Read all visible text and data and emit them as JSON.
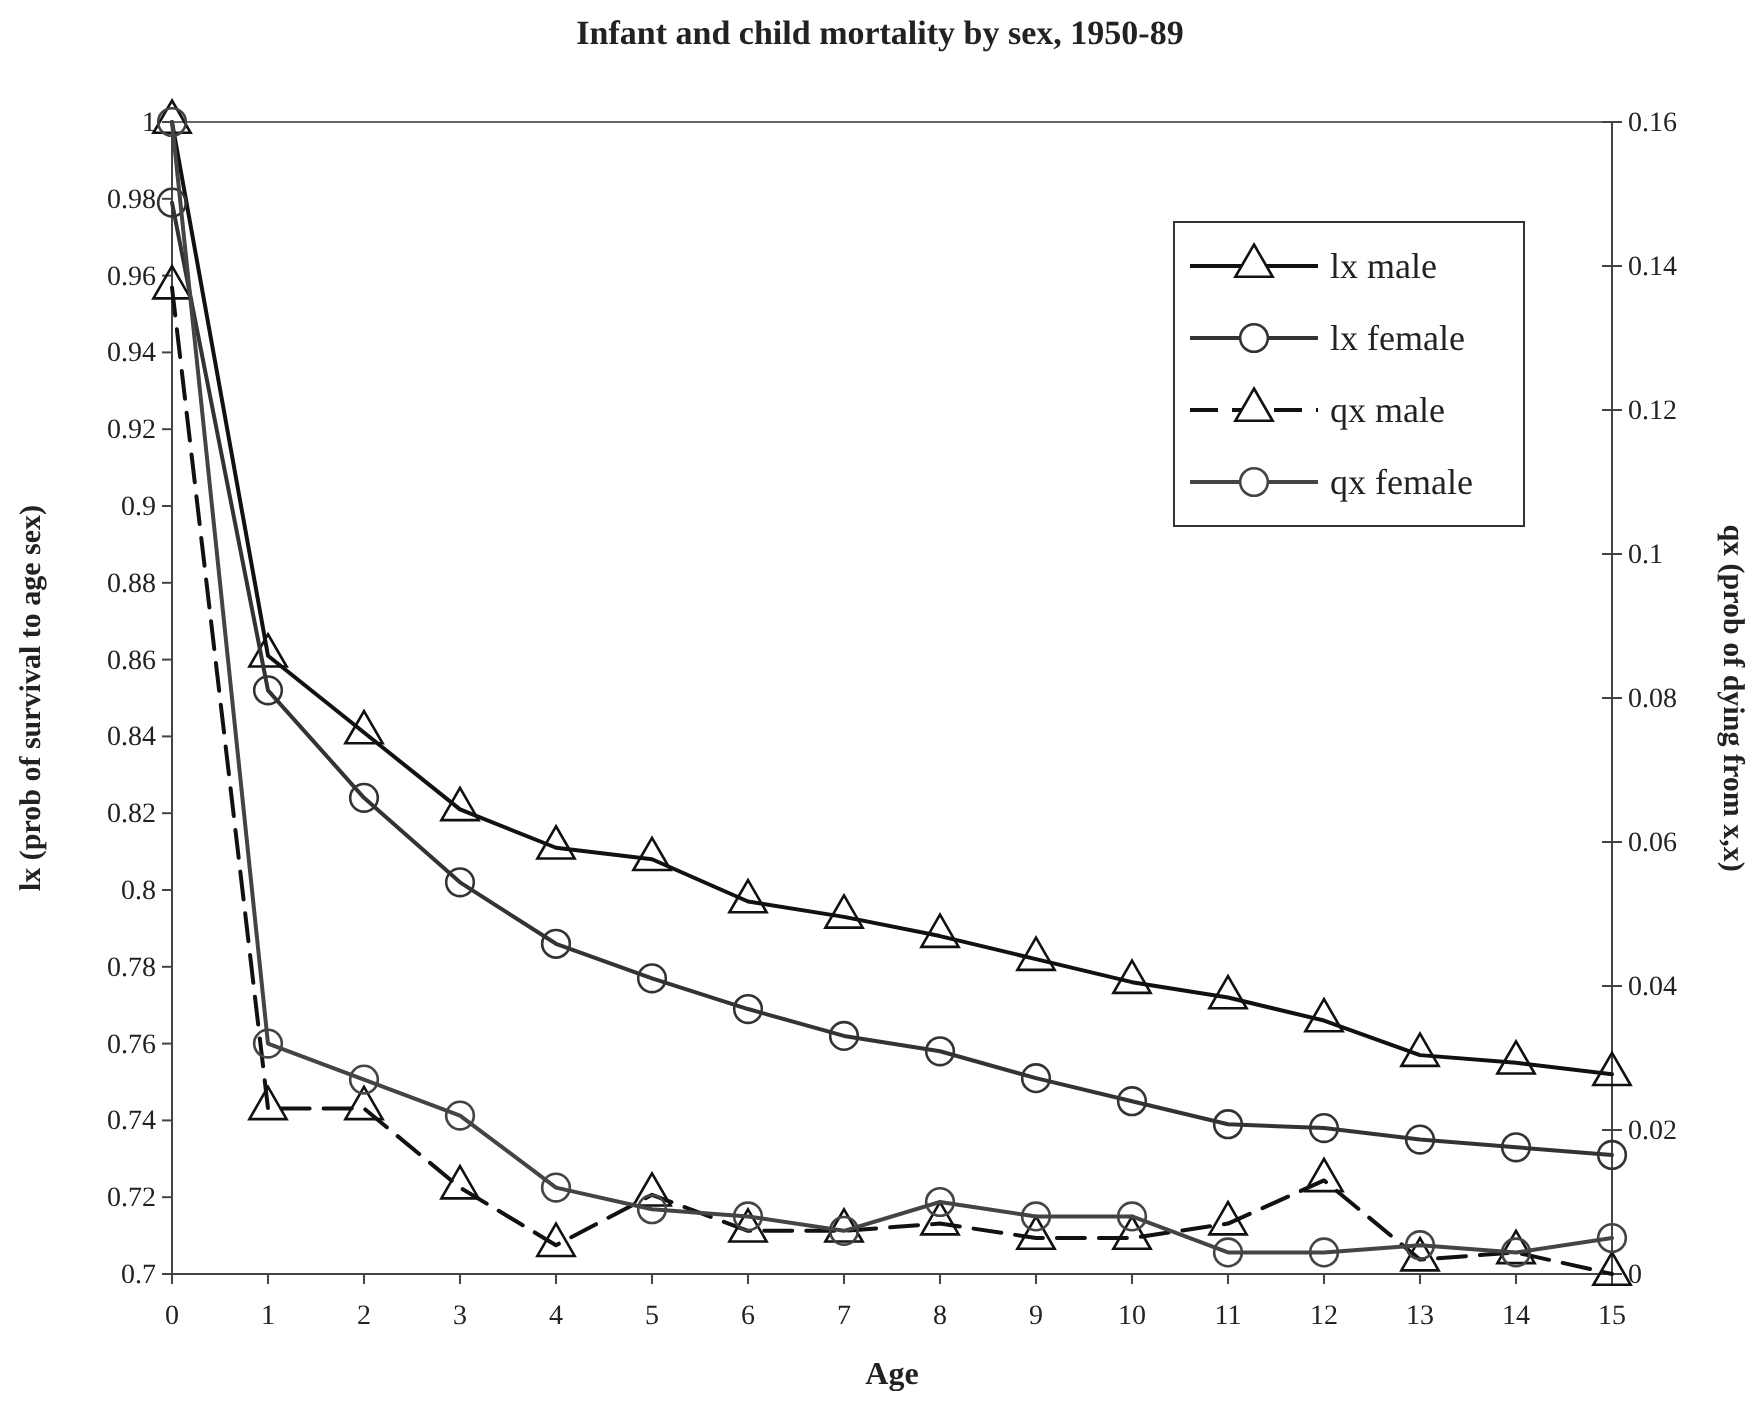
{
  "chart_data": {
    "type": "line",
    "title": "Infant and child mortality by sex, 1950-89",
    "xlabel": "Age",
    "ylabel": "lx (prob of survival to age sex)",
    "y2label": "qx (prob of dying from x,x)",
    "x": [
      0,
      1,
      2,
      3,
      4,
      5,
      6,
      7,
      8,
      9,
      10,
      11,
      12,
      13,
      14,
      15
    ],
    "xlim": [
      0,
      15
    ],
    "xticks": [
      0,
      1,
      2,
      3,
      4,
      5,
      6,
      7,
      8,
      9,
      10,
      11,
      12,
      13,
      14,
      15
    ],
    "ylim": [
      0.7,
      1
    ],
    "yticks": [
      0.7,
      0.72,
      0.74,
      0.76,
      0.78,
      0.8,
      0.82,
      0.84,
      0.86,
      0.88,
      0.9,
      0.92,
      0.94,
      0.96,
      0.98,
      1
    ],
    "y2lim": [
      0,
      0.16
    ],
    "y2ticks": [
      0,
      0.02,
      0.04,
      0.06,
      0.08,
      0.1,
      0.12,
      0.14,
      0.16
    ],
    "legend": "top right",
    "grid": false,
    "series": [
      {
        "name": "lx male",
        "color": "#111111",
        "marker": "triangle",
        "line_style": "solid",
        "values": [
          1,
          0.861,
          0.841,
          0.821,
          0.811,
          0.808,
          0.797,
          0.793,
          0.788,
          0.782,
          0.776,
          0.772,
          0.766,
          0.757,
          0.755,
          0.752
        ]
      },
      {
        "name": "lx female",
        "color": "#333333",
        "marker": "circle",
        "line_style": "solid",
        "values": [
          0.979,
          0.852,
          0.824,
          0.802,
          0.786,
          0.777,
          0.769,
          0.762,
          0.758,
          0.751,
          0.745,
          0.739,
          0.738,
          0.735,
          0.733,
          0.731
        ]
      },
      {
        "name": "qx male",
        "color": "#111111",
        "marker": "triangle",
        "line_style": "dashed",
        "axis": "y2",
        "values": [
          0.137,
          0.023,
          0.023,
          0.012,
          0.004,
          0.011,
          0.006,
          0.006,
          0.007,
          0.005,
          0.005,
          0.007,
          0.013,
          0.002,
          0.003,
          0
        ]
      },
      {
        "name": "qx female",
        "color": "#444444",
        "marker": "circle",
        "line_style": "solid",
        "axis": "y2",
        "values": [
          0.16,
          0.032,
          0.027,
          0.022,
          0.012,
          0.009,
          0.008,
          0.006,
          0.01,
          0.008,
          0.008,
          0.003,
          0.003,
          0.004,
          0.003,
          0.005
        ]
      }
    ]
  }
}
